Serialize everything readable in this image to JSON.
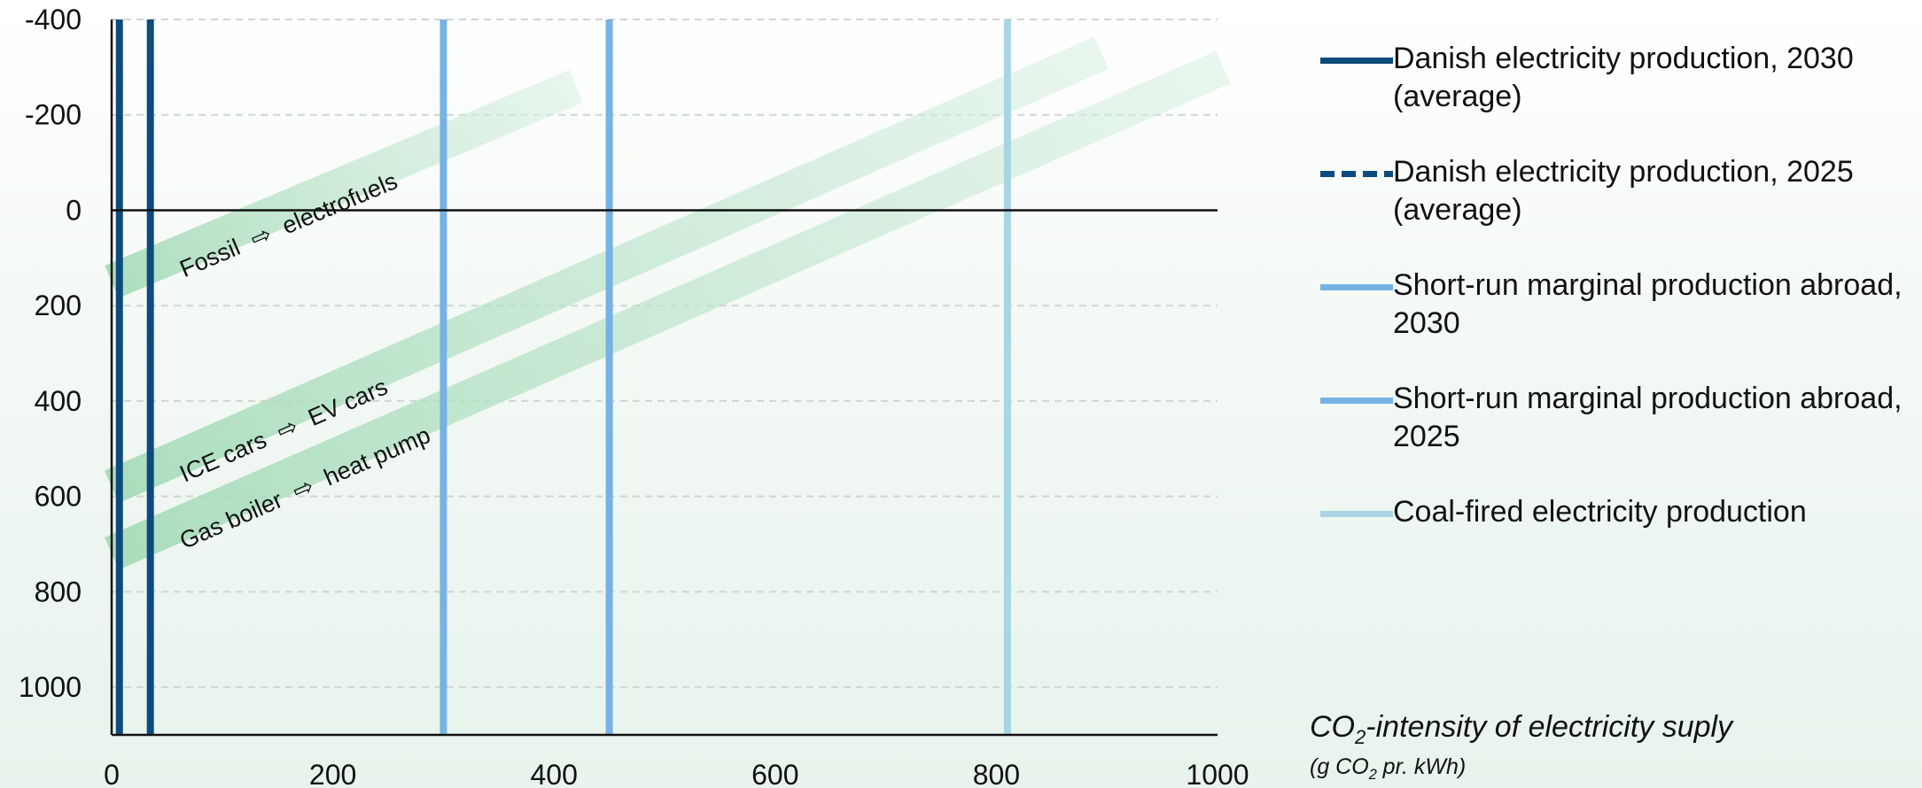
{
  "chart_data": {
    "type": "line",
    "x_axis": {
      "range": [
        0,
        1000
      ],
      "ticks": [
        0,
        200,
        400,
        600,
        800,
        1000
      ],
      "title_prefix": "CO",
      "title_sub": "2",
      "title_suffix": "-intensity of electricity suply",
      "unit_prefix": "(g CO",
      "unit_sub": "2",
      "unit_suffix": " pr. kWh)"
    },
    "y_axis": {
      "range": [
        -400,
        1100
      ],
      "inverted": true,
      "ticks": [
        -400,
        -200,
        0,
        200,
        400,
        600,
        800,
        1000
      ],
      "grid": true
    },
    "vertical_lines": [
      {
        "name": "Danish electricity production, 2030 (average)",
        "x": 7,
        "color": "#0d4a7e",
        "style": "solid"
      },
      {
        "name": "Danish electricity production, 2025 (average)",
        "x": 35,
        "color": "#0d4a7e",
        "style": "dashed"
      },
      {
        "name": "Short-run marginal production abroad, 2030",
        "x": 300,
        "color": "#76b2e3",
        "style": "solid"
      },
      {
        "name": "Short-run marginal production abroad, 2025",
        "x": 450,
        "color": "#76b2e3",
        "style": "solid"
      },
      {
        "name": "Coal-fired electricity production",
        "x": 810,
        "color": "#a7d6e2",
        "style": "solid"
      }
    ],
    "bands": [
      {
        "from": "Fossil",
        "arrow": "⇨",
        "to": "electrofuels",
        "x": [
          0,
          420
        ],
        "y": [
          150,
          -260
        ]
      },
      {
        "from": "ICE cars",
        "arrow": "⇨",
        "to": "EV cars",
        "x": [
          0,
          895
        ],
        "y": [
          580,
          -330
        ]
      },
      {
        "from": "Gas boiler",
        "arrow": "⇨",
        "to": "heat pump",
        "x": [
          0,
          1005
        ],
        "y": [
          720,
          -300
        ]
      }
    ],
    "legend": [
      {
        "label": "Danish electricity production, 2030 (average)",
        "color": "#0d4a7e",
        "style": "solid"
      },
      {
        "label": "Danish electricity production, 2025 (average)",
        "color": "#0d4a7e",
        "style": "dashed"
      },
      {
        "label": "Short-run marginal production abroad, 2030",
        "color": "#76b2e3",
        "style": "solid"
      },
      {
        "label": "Short-run marginal production abroad, 2025",
        "color": "#76b2e3",
        "style": "solid"
      },
      {
        "label": "Coal-fired electricity production",
        "color": "#a7d6e2",
        "style": "solid"
      }
    ],
    "legend_position": "right"
  }
}
